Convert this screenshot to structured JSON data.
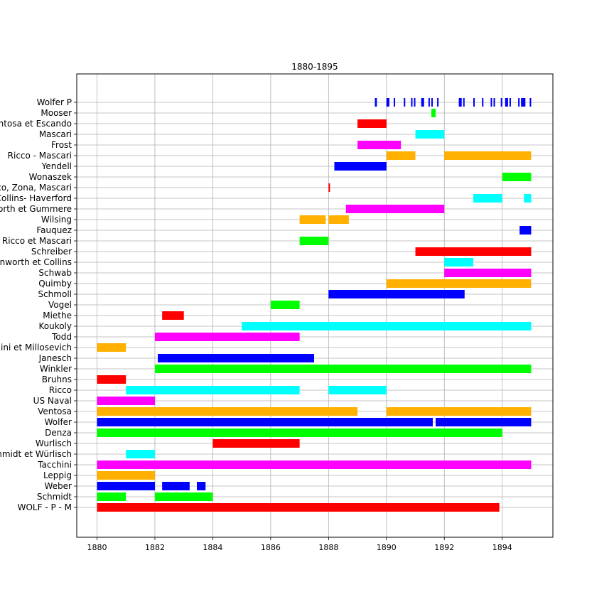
{
  "chart_data": {
    "type": "timeline",
    "title": "1880-1895",
    "xlim": [
      1879.3,
      1895.75
    ],
    "x_ticks": [
      1880,
      1882,
      1884,
      1886,
      1888,
      1890,
      1892,
      1894
    ],
    "grid": true,
    "categories": [
      "WOLF - P - M",
      "Schmidt",
      "Weber",
      "Leppig",
      "Tacchini",
      "Schmidt et Würlisch",
      "Wurlisch",
      "Denza",
      "Wolfer",
      "Ventosa",
      "US Naval",
      "Ricco",
      "Bruhns",
      "Winkler",
      "Janesch",
      "Tacchini et Millosevich",
      "Todd",
      "Koukoly",
      "Miethe",
      "Vogel",
      "Schmoll",
      "Quimby",
      "Schwab",
      "Rainworth et Collins",
      "Schreiber",
      "Ricco et Mascari",
      "Fauquez",
      "Wilsing",
      "Rainworth et Gummere",
      "Collins- Haverford",
      "Ricco, Zona, Mascari",
      "Wonaszek",
      "Yendell",
      "Ricco -  Mascari",
      "Frost",
      "Mascari",
      "Ventosa et Escando",
      "Mooser",
      "Wolfer P"
    ],
    "segments": [
      {
        "row": 0,
        "start": 1880.0,
        "end": 1893.9,
        "color": "#ff0000"
      },
      {
        "row": 1,
        "start": 1880.0,
        "end": 1881.0,
        "color": "#00ff00"
      },
      {
        "row": 1,
        "start": 1882.0,
        "end": 1884.0,
        "color": "#00ff00"
      },
      {
        "row": 2,
        "start": 1880.0,
        "end": 1882.0,
        "color": "#0000ff"
      },
      {
        "row": 2,
        "start": 1882.25,
        "end": 1883.2,
        "color": "#0000ff"
      },
      {
        "row": 2,
        "start": 1883.45,
        "end": 1883.75,
        "color": "#0000ff"
      },
      {
        "row": 3,
        "start": 1880.0,
        "end": 1882.0,
        "color": "#ffb000"
      },
      {
        "row": 4,
        "start": 1880.0,
        "end": 1895.0,
        "color": "#ff00ff"
      },
      {
        "row": 5,
        "start": 1881.0,
        "end": 1882.0,
        "color": "#00ffff"
      },
      {
        "row": 6,
        "start": 1884.0,
        "end": 1887.0,
        "color": "#ff0000"
      },
      {
        "row": 7,
        "start": 1880.0,
        "end": 1894.0,
        "color": "#00ff00"
      },
      {
        "row": 8,
        "start": 1880.0,
        "end": 1891.6,
        "color": "#0000ff"
      },
      {
        "row": 8,
        "start": 1891.7,
        "end": 1895.0,
        "color": "#0000ff"
      },
      {
        "row": 9,
        "start": 1880.0,
        "end": 1889.0,
        "color": "#ffb000"
      },
      {
        "row": 9,
        "start": 1890.0,
        "end": 1895.0,
        "color": "#ffb000"
      },
      {
        "row": 10,
        "start": 1880.0,
        "end": 1882.0,
        "color": "#ff00ff"
      },
      {
        "row": 11,
        "start": 1881.0,
        "end": 1887.0,
        "color": "#00ffff"
      },
      {
        "row": 11,
        "start": 1888.0,
        "end": 1890.0,
        "color": "#00ffff"
      },
      {
        "row": 12,
        "start": 1880.0,
        "end": 1881.0,
        "color": "#ff0000"
      },
      {
        "row": 13,
        "start": 1882.0,
        "end": 1895.0,
        "color": "#00ff00"
      },
      {
        "row": 14,
        "start": 1882.1,
        "end": 1887.5,
        "color": "#0000ff"
      },
      {
        "row": 15,
        "start": 1880.0,
        "end": 1881.0,
        "color": "#ffb000"
      },
      {
        "row": 16,
        "start": 1882.0,
        "end": 1887.0,
        "color": "#ff00ff"
      },
      {
        "row": 17,
        "start": 1885.0,
        "end": 1895.0,
        "color": "#00ffff"
      },
      {
        "row": 18,
        "start": 1882.25,
        "end": 1883.0,
        "color": "#ff0000"
      },
      {
        "row": 19,
        "start": 1886.0,
        "end": 1887.0,
        "color": "#00ff00"
      },
      {
        "row": 20,
        "start": 1888.0,
        "end": 1892.7,
        "color": "#0000ff"
      },
      {
        "row": 21,
        "start": 1890.0,
        "end": 1895.0,
        "color": "#ffb000"
      },
      {
        "row": 22,
        "start": 1892.0,
        "end": 1895.0,
        "color": "#ff00ff"
      },
      {
        "row": 23,
        "start": 1892.0,
        "end": 1893.0,
        "color": "#00ffff"
      },
      {
        "row": 24,
        "start": 1891.0,
        "end": 1895.0,
        "color": "#ff0000"
      },
      {
        "row": 25,
        "start": 1887.0,
        "end": 1888.0,
        "color": "#00ff00"
      },
      {
        "row": 26,
        "start": 1894.6,
        "end": 1895.0,
        "color": "#0000ff"
      },
      {
        "row": 27,
        "start": 1887.0,
        "end": 1887.9,
        "color": "#ffb000"
      },
      {
        "row": 27,
        "start": 1888.0,
        "end": 1888.7,
        "color": "#ffb000"
      },
      {
        "row": 28,
        "start": 1888.6,
        "end": 1892.0,
        "color": "#ff00ff"
      },
      {
        "row": 29,
        "start": 1893.0,
        "end": 1894.0,
        "color": "#00ffff"
      },
      {
        "row": 29,
        "start": 1894.75,
        "end": 1895.0,
        "color": "#00ffff"
      },
      {
        "row": 30,
        "start": 1888.0,
        "end": 1888.05,
        "color": "#ff0000"
      },
      {
        "row": 31,
        "start": 1894.0,
        "end": 1895.0,
        "color": "#00ff00"
      },
      {
        "row": 32,
        "start": 1888.2,
        "end": 1890.0,
        "color": "#0000ff"
      },
      {
        "row": 33,
        "start": 1890.0,
        "end": 1891.0,
        "color": "#ffb000"
      },
      {
        "row": 33,
        "start": 1892.0,
        "end": 1895.0,
        "color": "#ffb000"
      },
      {
        "row": 34,
        "start": 1889.0,
        "end": 1890.5,
        "color": "#ff00ff"
      },
      {
        "row": 35,
        "start": 1891.0,
        "end": 1892.0,
        "color": "#00ffff"
      },
      {
        "row": 36,
        "start": 1889.0,
        "end": 1890.0,
        "color": "#ff0000"
      },
      {
        "row": 37,
        "start": 1891.55,
        "end": 1891.7,
        "color": "#00ff00"
      },
      {
        "row": 38,
        "start": 1889.6,
        "end": 1889.67,
        "color": "#0000ff"
      },
      {
        "row": 38,
        "start": 1890.0,
        "end": 1890.1,
        "color": "#0000ff"
      },
      {
        "row": 38,
        "start": 1890.25,
        "end": 1890.3,
        "color": "#0000ff"
      },
      {
        "row": 38,
        "start": 1890.6,
        "end": 1890.65,
        "color": "#0000ff"
      },
      {
        "row": 38,
        "start": 1890.85,
        "end": 1890.9,
        "color": "#0000ff"
      },
      {
        "row": 38,
        "start": 1890.95,
        "end": 1891.0,
        "color": "#0000ff"
      },
      {
        "row": 38,
        "start": 1891.2,
        "end": 1891.3,
        "color": "#0000ff"
      },
      {
        "row": 38,
        "start": 1891.45,
        "end": 1891.5,
        "color": "#0000ff"
      },
      {
        "row": 38,
        "start": 1891.55,
        "end": 1891.6,
        "color": "#0000ff"
      },
      {
        "row": 38,
        "start": 1891.75,
        "end": 1891.8,
        "color": "#0000ff"
      },
      {
        "row": 38,
        "start": 1892.5,
        "end": 1892.6,
        "color": "#0000ff"
      },
      {
        "row": 38,
        "start": 1892.65,
        "end": 1892.7,
        "color": "#0000ff"
      },
      {
        "row": 38,
        "start": 1893.0,
        "end": 1893.05,
        "color": "#0000ff"
      },
      {
        "row": 38,
        "start": 1893.3,
        "end": 1893.35,
        "color": "#0000ff"
      },
      {
        "row": 38,
        "start": 1893.6,
        "end": 1893.65,
        "color": "#0000ff"
      },
      {
        "row": 38,
        "start": 1893.7,
        "end": 1893.75,
        "color": "#0000ff"
      },
      {
        "row": 38,
        "start": 1893.95,
        "end": 1894.0,
        "color": "#0000ff"
      },
      {
        "row": 38,
        "start": 1894.1,
        "end": 1894.2,
        "color": "#0000ff"
      },
      {
        "row": 38,
        "start": 1894.25,
        "end": 1894.3,
        "color": "#0000ff"
      },
      {
        "row": 38,
        "start": 1894.55,
        "end": 1894.6,
        "color": "#0000ff"
      },
      {
        "row": 38,
        "start": 1894.65,
        "end": 1894.8,
        "color": "#0000ff"
      },
      {
        "row": 38,
        "start": 1894.95,
        "end": 1895.0,
        "color": "#0000ff"
      }
    ]
  }
}
